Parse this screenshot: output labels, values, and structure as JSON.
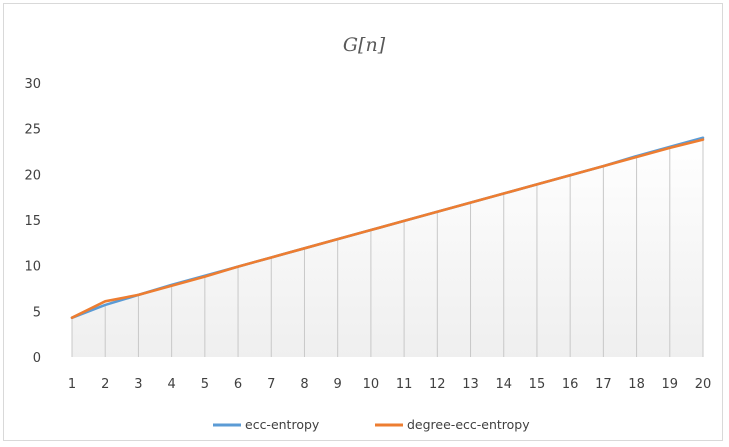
{
  "chart_data": {
    "type": "line",
    "title": "G[n]",
    "xlabel": "",
    "ylabel": "",
    "categories": [
      "1",
      "2",
      "3",
      "4",
      "5",
      "6",
      "7",
      "8",
      "9",
      "10",
      "11",
      "12",
      "13",
      "14",
      "15",
      "16",
      "17",
      "18",
      "19",
      "20"
    ],
    "y_ticks": [
      "0",
      "5",
      "10",
      "15",
      "20",
      "25",
      "30"
    ],
    "ylim": [
      0,
      30
    ],
    "grid": "vertical drop lines",
    "legend_position": "bottom",
    "series": [
      {
        "name": "ecc-entropy",
        "color": "#5b9bd5",
        "values": [
          4.3,
          5.7,
          6.8,
          7.9,
          8.9,
          9.9,
          10.9,
          11.9,
          12.9,
          13.9,
          14.9,
          15.9,
          16.9,
          17.9,
          18.9,
          19.9,
          20.9,
          22.0,
          23.0,
          24.0
        ]
      },
      {
        "name": "degree-ecc-entropy",
        "color": "#ed7d31",
        "values": [
          4.3,
          6.1,
          6.8,
          7.8,
          8.8,
          9.9,
          10.9,
          11.9,
          12.9,
          13.9,
          14.9,
          15.9,
          16.9,
          17.9,
          18.9,
          19.9,
          20.9,
          21.9,
          22.9,
          23.8
        ]
      }
    ]
  }
}
